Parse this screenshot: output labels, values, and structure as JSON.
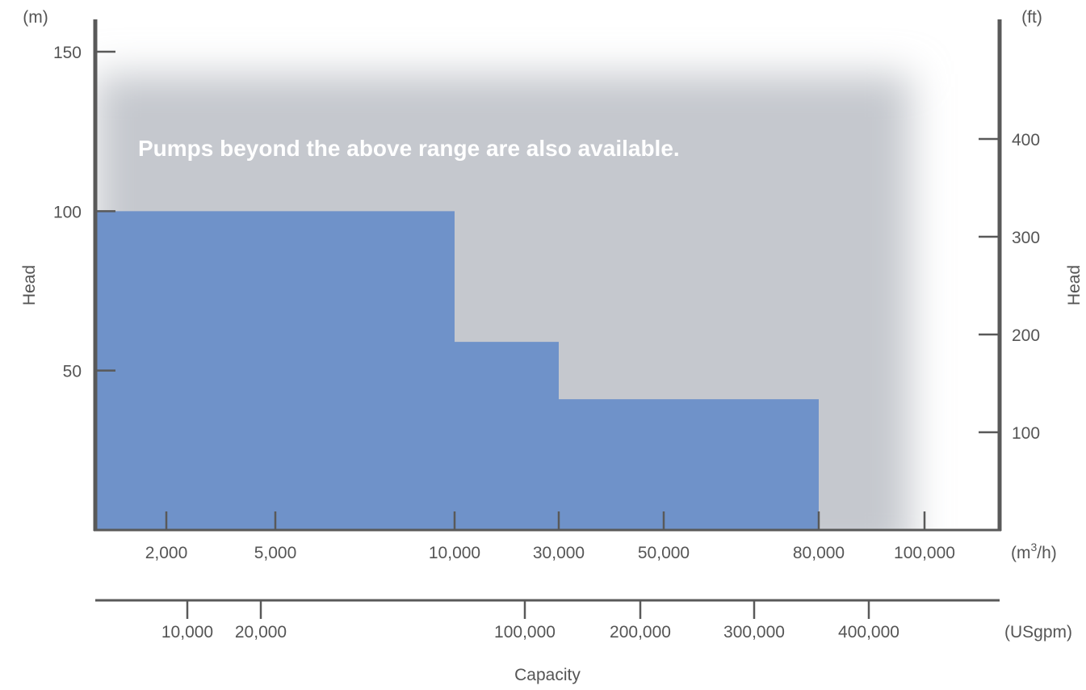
{
  "chart_data": {
    "type": "area",
    "xlabel": "Capacity",
    "ylabel_left": "Head",
    "ylabel_right": "Head",
    "ylabel_left_unit": "(m)",
    "ylabel_right_unit": "(ft)",
    "x_unit_primary": "(m³/h)",
    "x_unit_primary_base": "(m",
    "x_unit_primary_sup": "3",
    "x_unit_primary_end": "/h)",
    "x_unit_secondary": "(USgpm)",
    "annotation": "Pumps beyond the above range are also available.",
    "y_left_ticks": [
      {
        "value": 50,
        "label": "50"
      },
      {
        "value": 100,
        "label": "100"
      },
      {
        "value": 150,
        "label": "150"
      }
    ],
    "y_right_ticks": [
      {
        "value": 100,
        "label": "100"
      },
      {
        "value": 200,
        "label": "200"
      },
      {
        "value": 300,
        "label": "300"
      },
      {
        "value": 400,
        "label": "400"
      }
    ],
    "x_primary_ticks": [
      {
        "value": 2000,
        "label": "2,000"
      },
      {
        "value": 5000,
        "label": "5,000"
      },
      {
        "value": 10000,
        "label": "10,000"
      },
      {
        "value": 30000,
        "label": "30,000"
      },
      {
        "value": 50000,
        "label": "50,000"
      },
      {
        "value": 80000,
        "label": "80,000"
      },
      {
        "value": 100000,
        "label": "100,000"
      }
    ],
    "x_secondary_ticks": [
      {
        "value": 10000,
        "label": "10,000"
      },
      {
        "value": 20000,
        "label": "20,000"
      },
      {
        "value": 100000,
        "label": "100,000"
      },
      {
        "value": 200000,
        "label": "200,000"
      },
      {
        "value": 300000,
        "label": "300,000"
      },
      {
        "value": 400000,
        "label": "400,000"
      }
    ],
    "coverage_steps": [
      {
        "capacity_to": 10000,
        "head": 100
      },
      {
        "capacity_to": 30000,
        "head": 59
      },
      {
        "capacity_to": 80000,
        "head": 41
      }
    ],
    "extended_range": {
      "capacity_to": 100000,
      "head": 150
    },
    "colors": {
      "coverage": "#6f92c9",
      "extended": "#c5c8ce",
      "axis": "#595959",
      "text": "#555555",
      "annotation": "#ffffff"
    }
  }
}
